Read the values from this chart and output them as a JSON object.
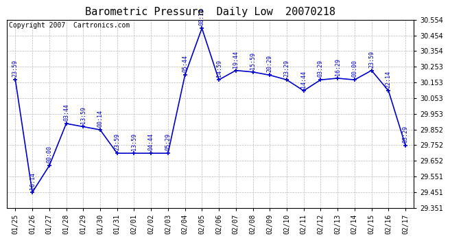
{
  "title": "Barometric Pressure  Daily Low  20070218",
  "copyright": "Copyright 2007  Cartronics.com",
  "line_color": "#0000CC",
  "background_color": "#ffffff",
  "plot_bg_color": "#ffffff",
  "grid_color": "#bbbbbb",
  "dates": [
    "01/25",
    "01/26",
    "01/27",
    "01/28",
    "01/29",
    "01/30",
    "01/31",
    "02/01",
    "02/02",
    "02/03",
    "02/04",
    "02/05",
    "02/06",
    "02/07",
    "02/08",
    "02/09",
    "02/10",
    "02/11",
    "02/12",
    "02/13",
    "02/14",
    "02/15",
    "02/16",
    "02/17"
  ],
  "values": [
    30.17,
    29.45,
    29.62,
    29.89,
    29.87,
    29.85,
    29.7,
    29.7,
    29.7,
    29.7,
    30.2,
    30.5,
    30.17,
    30.23,
    30.22,
    30.2,
    30.17,
    30.1,
    30.17,
    30.18,
    30.17,
    30.23,
    30.1,
    29.75
  ],
  "annotations": [
    "23:59",
    "16:14",
    "00:00",
    "03:44",
    "13:59",
    "00:14",
    "23:59",
    "13:59",
    "04:44",
    "05:29",
    "05:44",
    "00:14",
    "14:59",
    "19:44",
    "15:59",
    "20:29",
    "23:29",
    "14:44",
    "03:29",
    "16:29",
    "00:00",
    "23:59",
    "22:14",
    "03:29"
  ],
  "ylim_min": 29.351,
  "ylim_max": 30.554,
  "yticks": [
    29.351,
    29.451,
    29.551,
    29.652,
    29.752,
    29.852,
    29.953,
    30.053,
    30.153,
    30.253,
    30.354,
    30.454,
    30.554
  ],
  "title_fontsize": 11,
  "annotation_fontsize": 6,
  "copyright_fontsize": 7,
  "tick_fontsize": 7,
  "ytick_fontsize": 7
}
